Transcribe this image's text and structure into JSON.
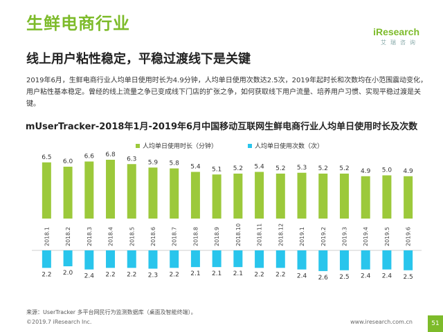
{
  "page": {
    "title": "生鲜电商行业",
    "subtitle": "线上用户粘性稳定，平稳过渡线下是关键",
    "intro": "2019年6月，生鲜电商行业人均单日使用时长为4.9分钟，人均单日使用次数达2.5次，2019年起时长和次数均在小范围震动变化，用户粘性基本稳定。曾经的线上流量之争已变成线下门店的扩张之争，如何获取线下用户流量、培养用户习惯、实现平稳过渡是关键。",
    "source": "来源：UserTracker 多平台网民行为监测数据库（桌面及智能终端）。",
    "copyright": "©2019.7 iResearch Inc.",
    "website": "www.iresearch.com.cn",
    "page_number": "51",
    "logo_text": "iResearch",
    "logo_sub": "艾瑞咨询"
  },
  "colors": {
    "accent": "#7dbb2a",
    "bar_duration": "#9cc93b",
    "bar_times": "#29c5ec"
  },
  "chart_data": {
    "type": "bar",
    "title": "mUserTracker-2018年1月-2019年6月中国移动互联网生鲜电商行业人均单日使用时长及次数",
    "categories": [
      "2018.1",
      "2018.2",
      "2018.3",
      "2018.4",
      "2018.5",
      "2018.6",
      "2018.7",
      "2018.8",
      "2018.9",
      "2018.10",
      "2018.11",
      "2018.12",
      "2019.1",
      "2019.2",
      "2019.3",
      "2019.4",
      "2019.5",
      "2019.6"
    ],
    "series": [
      {
        "name": "人均单日使用时长（分钟）",
        "values": [
          6.5,
          6.0,
          6.6,
          6.8,
          6.3,
          5.9,
          5.8,
          5.4,
          5.1,
          5.2,
          5.4,
          5.2,
          5.3,
          5.2,
          5.2,
          4.9,
          5.0,
          4.9
        ]
      },
      {
        "name": "人均单日使用次数（次）",
        "values": [
          2.2,
          2.0,
          2.4,
          2.2,
          2.2,
          2.3,
          2.2,
          2.1,
          2.1,
          2.1,
          2.2,
          2.2,
          2.4,
          2.6,
          2.5,
          2.4,
          2.4,
          2.5
        ]
      }
    ],
    "legend_position": "top",
    "grid": false
  }
}
